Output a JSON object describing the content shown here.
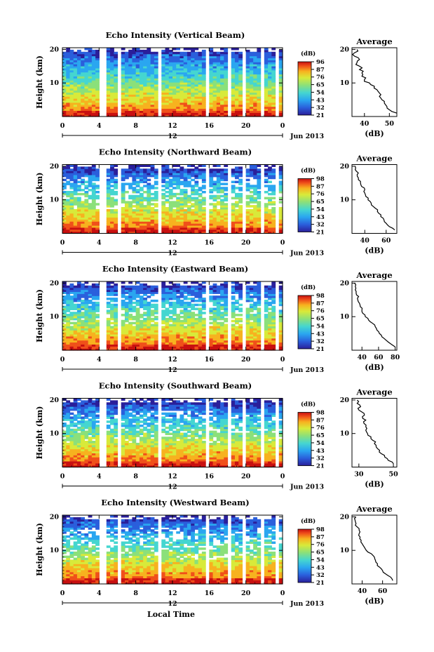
{
  "chart_data": [
    {
      "type": "heatmap",
      "title": "Echo Intensity (Vertical Beam)",
      "ylabel": "Height (km)",
      "xlabel": "Local Time",
      "x_ticks": [
        "0",
        "4",
        "8",
        "12",
        "16",
        "20",
        "0"
      ],
      "y_ticks": [
        "20",
        "10"
      ],
      "date_label": "Jun 2013",
      "secondary_x_tick": "12",
      "colorbar": {
        "title": "(dB)",
        "ticks": [
          "96",
          "87",
          "76",
          "65",
          "54",
          "43",
          "32",
          "21"
        ]
      },
      "profile": {
        "title": "Average",
        "xlabel": "(dB)",
        "x_ticks": [
          "40",
          "50"
        ],
        "xlim": [
          35,
          53
        ],
        "y_ticks": [
          "20",
          "10"
        ],
        "height": [
          1,
          2,
          3,
          4,
          5,
          6,
          7,
          8,
          9,
          10,
          11,
          12,
          13,
          14,
          15,
          16,
          17,
          18,
          19,
          20
        ],
        "value": [
          53,
          50,
          49,
          48,
          47,
          46,
          46,
          45,
          44,
          42,
          40,
          39,
          39,
          38,
          38,
          37,
          38,
          36,
          36,
          37
        ]
      }
    },
    {
      "type": "heatmap",
      "title": "Echo Intensity (Northward Beam)",
      "ylabel": "Height (km)",
      "x_ticks": [
        "0",
        "4",
        "8",
        "12",
        "16",
        "20",
        "0"
      ],
      "y_ticks": [
        "20",
        "10"
      ],
      "date_label": "Jun 2013",
      "secondary_x_tick": "12",
      "colorbar": {
        "title": "(dB)",
        "ticks": [
          "98",
          "87",
          "76",
          "65",
          "54",
          "43",
          "32",
          "21"
        ]
      },
      "profile": {
        "title": "Average",
        "xlabel": "(dB)",
        "x_ticks": [
          "40",
          "60"
        ],
        "xlim": [
          28,
          70
        ],
        "y_ticks": [
          "20",
          "10"
        ],
        "height": [
          1,
          2,
          3,
          4,
          5,
          6,
          7,
          8,
          9,
          10,
          11,
          12,
          13,
          14,
          15,
          16,
          17,
          18,
          19,
          20
        ],
        "value": [
          68,
          63,
          60,
          58,
          55,
          53,
          52,
          48,
          46,
          43,
          41,
          40,
          40,
          37,
          36,
          34,
          33,
          34,
          31,
          31
        ]
      }
    },
    {
      "type": "heatmap",
      "title": "Echo Intensity (Eastward Beam)",
      "ylabel": "Height (km)",
      "x_ticks": [
        "0",
        "4",
        "8",
        "12",
        "16",
        "20",
        "0"
      ],
      "y_ticks": [
        "20",
        "10"
      ],
      "date_label": "Jun 2013",
      "secondary_x_tick": "12",
      "colorbar": {
        "title": "(dB)",
        "ticks": [
          "98",
          "87",
          "76",
          "65",
          "54",
          "43",
          "32",
          "21"
        ]
      },
      "profile": {
        "title": "Average",
        "xlabel": "(dB)",
        "x_ticks": [
          "40",
          "60",
          "80"
        ],
        "xlim": [
          28,
          82
        ],
        "y_ticks": [
          "20",
          "10"
        ],
        "height": [
          1,
          2,
          3,
          4,
          5,
          6,
          7,
          8,
          9,
          10,
          11,
          12,
          13,
          14,
          15,
          16,
          17,
          18,
          19,
          20
        ],
        "value": [
          80,
          74,
          69,
          64,
          61,
          58,
          56,
          53,
          48,
          44,
          41,
          40,
          38,
          37,
          35,
          36,
          33,
          32,
          32,
          31
        ]
      }
    },
    {
      "type": "heatmap",
      "title": "Echo Intensity (Southward Beam)",
      "ylabel": "Height (km)",
      "x_ticks": [
        "0",
        "4",
        "8",
        "12",
        "16",
        "20",
        "0"
      ],
      "y_ticks": [
        "20",
        "10"
      ],
      "date_label": "Jun 2013",
      "secondary_x_tick": "12",
      "colorbar": {
        "title": "(dB)",
        "ticks": [
          "98",
          "87",
          "76",
          "65",
          "54",
          "43",
          "32",
          "21"
        ]
      },
      "profile": {
        "title": "Average",
        "xlabel": "(dB)",
        "x_ticks": [
          "30",
          "50"
        ],
        "xlim": [
          26,
          52
        ],
        "y_ticks": [
          "20",
          "10"
        ],
        "height": [
          1,
          2,
          3,
          4,
          5,
          6,
          7,
          8,
          9,
          10,
          11,
          12,
          13,
          14,
          15,
          16,
          17,
          18,
          19,
          20
        ],
        "value": [
          50,
          47,
          45,
          43,
          42,
          40,
          39,
          38,
          37,
          35,
          34,
          34,
          33,
          34,
          32,
          33,
          30,
          31,
          29,
          29
        ]
      }
    },
    {
      "type": "heatmap",
      "title": "Echo Intensity (Westward Beam)",
      "ylabel": "Height (km)",
      "x_ticks": [
        "0",
        "4",
        "8",
        "12",
        "16",
        "20",
        "0"
      ],
      "y_ticks": [
        "20",
        "10"
      ],
      "date_label": "Jun 2013",
      "secondary_x_tick": "12",
      "colorbar": {
        "title": "(dB)",
        "ticks": [
          "98",
          "87",
          "76",
          "65",
          "54",
          "43",
          "32",
          "21"
        ]
      },
      "profile": {
        "title": "Average",
        "xlabel": "(dB)",
        "x_ticks": [
          "40",
          "60"
        ],
        "xlim": [
          30,
          74
        ],
        "y_ticks": [
          "20",
          "10"
        ],
        "height": [
          1,
          2,
          3,
          4,
          5,
          6,
          7,
          8,
          9,
          10,
          11,
          12,
          13,
          14,
          15,
          16,
          17,
          18,
          19,
          20
        ],
        "value": [
          70,
          68,
          63,
          60,
          57,
          55,
          53,
          52,
          49,
          44,
          42,
          40,
          39,
          38,
          37,
          37,
          35,
          34,
          33,
          34
        ]
      }
    }
  ],
  "xlabel": "Local Time",
  "colors": {
    "scale": [
      "#2a1f9a",
      "#2a5fdc",
      "#2aa6f0",
      "#45d6d0",
      "#8be07a",
      "#d8ea3a",
      "#f7b21f",
      "#f0501a",
      "#c81010"
    ]
  }
}
